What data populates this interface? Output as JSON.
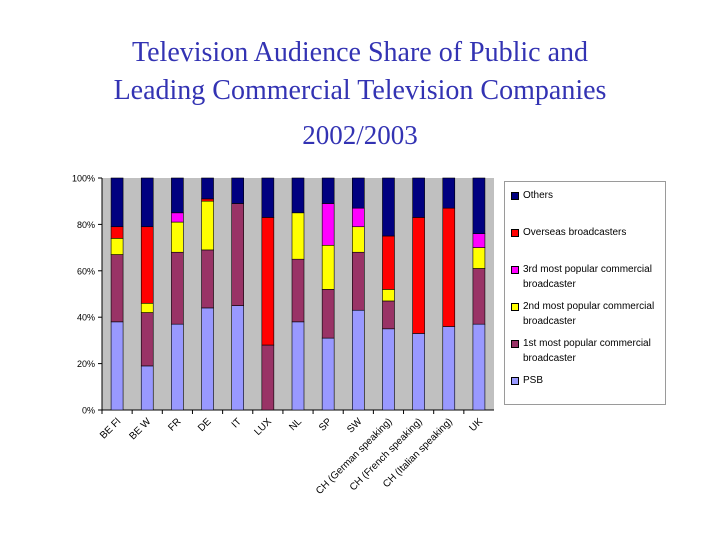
{
  "title": {
    "line1": "Television Audience Share of Public and",
    "line2": "Leading Commercial Television Companies",
    "subtitle": "2002/2003"
  },
  "chart_data": {
    "type": "bar",
    "stacked": "percent",
    "ylim": [
      0,
      100
    ],
    "yticks": [
      "0%",
      "20%",
      "40%",
      "60%",
      "80%",
      "100%"
    ],
    "grid": false,
    "plot_background": "#c0c0c0",
    "legend_position": "right",
    "categories": [
      "BE Fl",
      "BE W",
      "FR",
      "DE",
      "IT",
      "LUX",
      "NL",
      "SP",
      "SW",
      "CH (German speaking)",
      "CH (French speaking)",
      "CH (Italian speaking)",
      "UK"
    ],
    "series": [
      {
        "name": "PSB",
        "color": "#9999ff",
        "values": [
          38,
          19,
          37,
          44,
          45,
          0,
          38,
          31,
          43,
          35,
          33,
          36,
          37
        ]
      },
      {
        "name": "1st most popular commercial broadcaster",
        "color": "#993366",
        "values": [
          29,
          23,
          31,
          25,
          44,
          28,
          27,
          21,
          25,
          12,
          0,
          0,
          24
        ]
      },
      {
        "name": "2nd most popular commercial broadcaster",
        "color": "#ffff00",
        "values": [
          7,
          4,
          13,
          21,
          0,
          0,
          20,
          19,
          11,
          5,
          0,
          0,
          9
        ]
      },
      {
        "name": "3rd most popular commercial broadcaster",
        "color": "#ff00ff",
        "values": [
          0,
          0,
          4,
          0,
          0,
          0,
          0,
          18,
          8,
          0,
          0,
          0,
          6
        ]
      },
      {
        "name": "Overseas broadcasters",
        "color": "#ff0000",
        "values": [
          5,
          33,
          0,
          1,
          0,
          55,
          0,
          0,
          0,
          23,
          50,
          51,
          0
        ]
      },
      {
        "name": "Others",
        "color": "#000080",
        "values": [
          21,
          21,
          15,
          9,
          11,
          17,
          15,
          11,
          13,
          25,
          17,
          13,
          24
        ]
      }
    ]
  }
}
